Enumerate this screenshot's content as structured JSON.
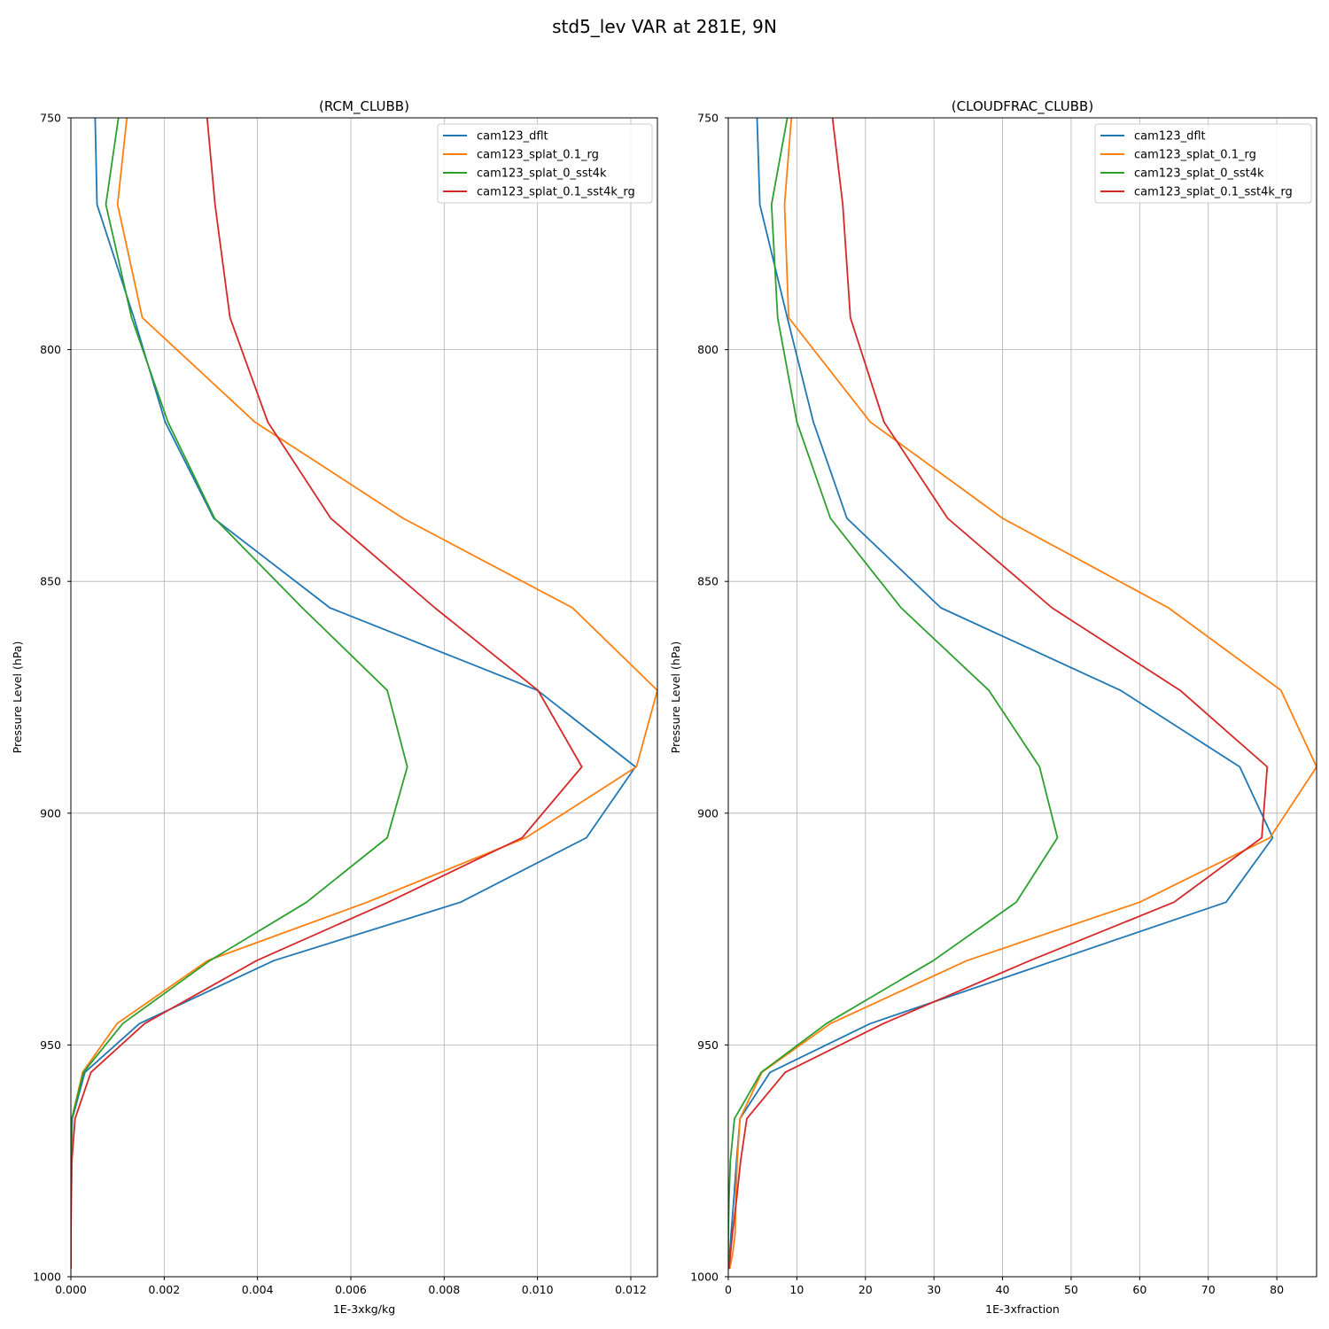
{
  "figure": {
    "title": "std5_lev VAR at 281E, 9N"
  },
  "chart_data": [
    {
      "type": "line",
      "title": "(RCM_CLUBB)",
      "xlabel": "1E-3xkg/kg",
      "ylabel": "Pressure Level (hPa)",
      "xlim": [
        0,
        0.01257
      ],
      "ylim": [
        1000,
        750
      ],
      "y_inverted": true,
      "grid": true,
      "legend": "top-right",
      "x_ticks": [
        "0.000",
        "0.002",
        "0.004",
        "0.006",
        "0.008",
        "0.010",
        "0.012"
      ],
      "y_ticks": [
        "750",
        "800",
        "850",
        "900",
        "950",
        "1000"
      ],
      "levels": [
        750,
        768.7,
        793.1,
        815.6,
        836.4,
        855.7,
        873.5,
        890,
        905.3,
        919.2,
        931.8,
        945.4,
        955.9,
        965.9,
        975,
        983.4,
        990.8,
        995.4,
        998.3
      ],
      "series": [
        {
          "name": "cam123_dflt",
          "color": "#1f77b4",
          "x": [
            0.00052,
            0.00056,
            0.00135,
            0.00202,
            0.00306,
            0.00555,
            0.01,
            0.0121,
            0.01105,
            0.00835,
            0.00435,
            0.00147,
            0.0003,
            3e-05,
            1e-05,
            0.0,
            0.0,
            0.0,
            0.0
          ]
        },
        {
          "name": "cam123_splat_0.1_rg",
          "color": "#ff7f0e",
          "x": [
            0.0012,
            0.001,
            0.00153,
            0.00394,
            0.00712,
            0.01075,
            0.01257,
            0.01212,
            0.00975,
            0.00635,
            0.00293,
            0.00099,
            0.00025,
            2e-05,
            1e-05,
            0.0,
            0.0,
            0.0,
            0.0
          ]
        },
        {
          "name": "cam123_splat_0_sst4k",
          "color": "#2ca02c",
          "x": [
            0.00102,
            0.00075,
            0.0013,
            0.00208,
            0.00308,
            0.00496,
            0.00678,
            0.00721,
            0.00678,
            0.00505,
            0.00298,
            0.00111,
            0.00027,
            2e-05,
            0.0,
            0.0,
            0.0,
            0.0,
            0.0
          ]
        },
        {
          "name": "cam123_splat_0.1_sst4k_rg",
          "color": "#d62728",
          "x": [
            0.00292,
            0.00309,
            0.00341,
            0.00422,
            0.00557,
            0.0078,
            0.01001,
            0.01095,
            0.00967,
            0.0068,
            0.00398,
            0.00158,
            0.00043,
            9e-05,
            2e-05,
            1e-05,
            0.0,
            0.0,
            0.0
          ]
        }
      ]
    },
    {
      "type": "line",
      "title": "(CLOUDFRAC_CLUBB)",
      "xlabel": "1E-3xfraction",
      "ylabel": "Pressure Level (hPa)",
      "xlim": [
        0,
        85.8
      ],
      "ylim": [
        1000,
        750
      ],
      "y_inverted": true,
      "grid": true,
      "legend": "top-right",
      "x_ticks": [
        "0",
        "10",
        "20",
        "30",
        "40",
        "50",
        "60",
        "70",
        "80"
      ],
      "y_ticks": [
        "750",
        "800",
        "850",
        "900",
        "950",
        "1000"
      ],
      "levels": [
        750,
        768.7,
        793.1,
        815.6,
        836.4,
        855.7,
        873.5,
        890,
        905.3,
        919.2,
        931.8,
        945.4,
        955.9,
        965.9,
        975,
        983.4,
        990.8,
        995.4,
        998.3
      ],
      "series": [
        {
          "name": "cam123_dflt",
          "color": "#1f77b4",
          "x": [
            4.2,
            4.6,
            8.6,
            12.4,
            17.3,
            31.0,
            57.2,
            74.6,
            79.4,
            72.6,
            47.6,
            20.7,
            6.1,
            1.7,
            1.2,
            0.8,
            0.4,
            0.2,
            0.1
          ]
        },
        {
          "name": "cam123_splat_0.1_rg",
          "color": "#ff7f0e",
          "x": [
            9.2,
            8.2,
            8.8,
            20.7,
            40.0,
            64.2,
            80.6,
            85.8,
            79.0,
            60.0,
            34.8,
            14.9,
            4.9,
            1.7,
            1.3,
            1.1,
            1.0,
            0.6,
            0.2
          ]
        },
        {
          "name": "cam123_splat_0_sst4k",
          "color": "#2ca02c",
          "x": [
            8.6,
            6.3,
            7.2,
            10.0,
            14.9,
            25.2,
            38.0,
            45.4,
            48.0,
            42.0,
            29.9,
            14.3,
            4.8,
            0.9,
            0.3,
            0.1,
            0.0,
            0.0,
            0.0
          ]
        },
        {
          "name": "cam123_splat_0.1_sst4k_rg",
          "color": "#d62728",
          "x": [
            15.2,
            16.7,
            17.8,
            22.7,
            32.0,
            47.2,
            65.9,
            78.6,
            77.8,
            65.0,
            44.0,
            22.6,
            8.3,
            2.7,
            1.8,
            1.2,
            0.6,
            0.3,
            0.1
          ]
        }
      ]
    }
  ]
}
